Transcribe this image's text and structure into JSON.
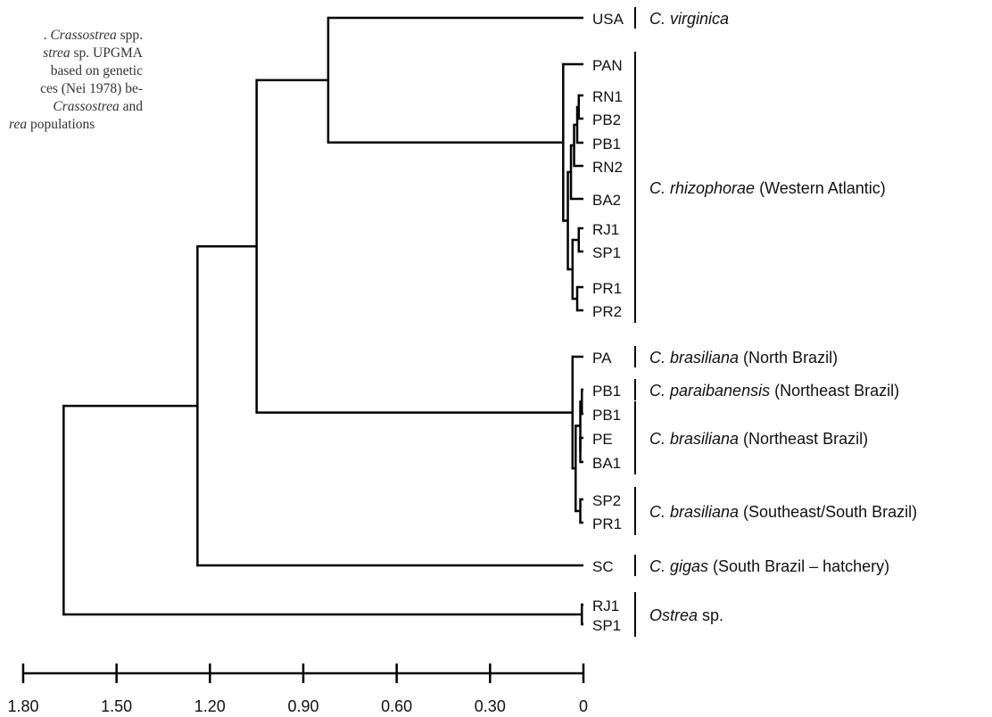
{
  "caption": {
    "lines": [
      {
        "parts": [
          {
            "t": ". ",
            "i": false
          },
          {
            "t": "Crassostrea",
            "i": true
          },
          {
            "t": " spp.",
            "i": false
          }
        ]
      },
      {
        "parts": [
          {
            "t": "strea",
            "i": true
          },
          {
            "t": " sp. UPGMA",
            "i": false
          }
        ]
      },
      {
        "parts": [
          {
            "t": "based on genetic",
            "i": false
          }
        ]
      },
      {
        "parts": [
          {
            "t": "ces (Nei 1978) be-",
            "i": false
          }
        ]
      },
      {
        "parts": [
          {
            "t": "Crassostrea",
            "i": true
          },
          {
            "t": " and",
            "i": false
          }
        ]
      },
      {
        "parts": [
          {
            "t": "rea",
            "i": true
          },
          {
            "t": " populations",
            "i": false
          }
        ]
      }
    ]
  },
  "dendrogram": {
    "method": "UPGMA",
    "leaves": [
      "USA",
      "PAN",
      "RN1",
      "PB2",
      "PB1",
      "RN2",
      "BA2",
      "RJ1",
      "SP1",
      "PR1",
      "PR2",
      "PA",
      "PB1",
      "PB1",
      "PE",
      "BA1",
      "SP2",
      "PR1",
      "SC",
      "RJ1",
      "SP1"
    ],
    "tree": {
      "h": 1.67,
      "c": [
        {
          "h": 1.24,
          "c": [
            {
              "h": 1.05,
              "c": [
                {
                  "h": 0.82,
                  "c": [
                    {
                      "leaf": 0
                    },
                    {
                      "h": 0.065,
                      "c": [
                        {
                          "leaf": 1
                        },
                        {
                          "h": 0.05,
                          "c": [
                            {
                              "h": 0.04,
                              "c": [
                                {
                                  "h": 0.03,
                                  "c": [
                                    {
                                      "h": 0.02,
                                      "c": [
                                        {
                                          "h": 0.015,
                                          "c": [
                                            {
                                              "leaf": 2
                                            },
                                            {
                                              "leaf": 3
                                            }
                                          ]
                                        },
                                        {
                                          "leaf": 4
                                        }
                                      ]
                                    },
                                    {
                                      "leaf": 5
                                    }
                                  ]
                                },
                                {
                                  "leaf": 6
                                }
                              ]
                            },
                            {
                              "h": 0.035,
                              "c": [
                                {
                                  "h": 0.015,
                                  "c": [
                                    {
                                      "leaf": 7
                                    },
                                    {
                                      "leaf": 8
                                    }
                                  ]
                                },
                                {
                                  "h": 0.02,
                                  "c": [
                                    {
                                      "leaf": 9
                                    },
                                    {
                                      "leaf": 10
                                    }
                                  ]
                                }
                              ]
                            }
                          ]
                        }
                      ]
                    }
                  ]
                },
                {
                  "h": 0.035,
                  "c": [
                    {
                      "leaf": 11
                    },
                    {
                      "h": 0.025,
                      "c": [
                        {
                          "h": 0.01,
                          "c": [
                            {
                              "h": 0.005,
                              "c": [
                                {
                                  "leaf": 12
                                },
                                {
                                  "leaf": 13
                                }
                              ]
                            },
                            {
                              "h": 0.01,
                              "c": [
                                {
                                  "leaf": 14
                                },
                                {
                                  "leaf": 15
                                }
                              ]
                            }
                          ]
                        },
                        {
                          "h": 0.01,
                          "c": [
                            {
                              "leaf": 16
                            },
                            {
                              "leaf": 17
                            }
                          ]
                        }
                      ]
                    }
                  ]
                }
              ]
            },
            {
              "leaf": 18
            }
          ]
        },
        {
          "h": 0.005,
          "c": [
            {
              "leaf": 19
            },
            {
              "leaf": 20
            }
          ]
        }
      ]
    },
    "groups": [
      {
        "first": 0,
        "last": 0,
        "label": [
          {
            "t": "C. virginica",
            "i": true
          }
        ]
      },
      {
        "first": 1,
        "last": 10,
        "label": [
          {
            "t": "C. rhizophorae",
            "i": true
          },
          {
            "t": " (Western Atlantic)",
            "i": false
          }
        ]
      },
      {
        "first": 11,
        "last": 11,
        "label": [
          {
            "t": "C. brasiliana",
            "i": true
          },
          {
            "t": " (North Brazil)",
            "i": false
          }
        ]
      },
      {
        "first": 12,
        "last": 12,
        "label": [
          {
            "t": "C. paraibanensis",
            "i": true
          },
          {
            "t": " (Northeast Brazil)",
            "i": false
          }
        ]
      },
      {
        "first": 13,
        "last": 15,
        "label": [
          {
            "t": "C. brasiliana",
            "i": true
          },
          {
            "t": " (Northeast Brazil)",
            "i": false
          }
        ]
      },
      {
        "first": 16,
        "last": 17,
        "label": [
          {
            "t": "C. brasiliana",
            "i": true
          },
          {
            "t": " (Southeast/South Brazil)",
            "i": false
          }
        ]
      },
      {
        "first": 18,
        "last": 18,
        "label": [
          {
            "t": "C. gigas",
            "i": true
          },
          {
            "t": " (South Brazil – hatchery)",
            "i": false
          }
        ]
      },
      {
        "first": 19,
        "last": 20,
        "label": [
          {
            "t": "Ostrea",
            "i": true
          },
          {
            "t": " sp.",
            "i": false
          }
        ]
      }
    ]
  },
  "scale": {
    "ticks": [
      "1.80",
      "1.50",
      "1.20",
      "0.90",
      "0.60",
      "0.30",
      "0"
    ],
    "range": [
      1.8,
      0
    ]
  },
  "colors": {
    "lines": "#000000",
    "text": "#111111"
  }
}
